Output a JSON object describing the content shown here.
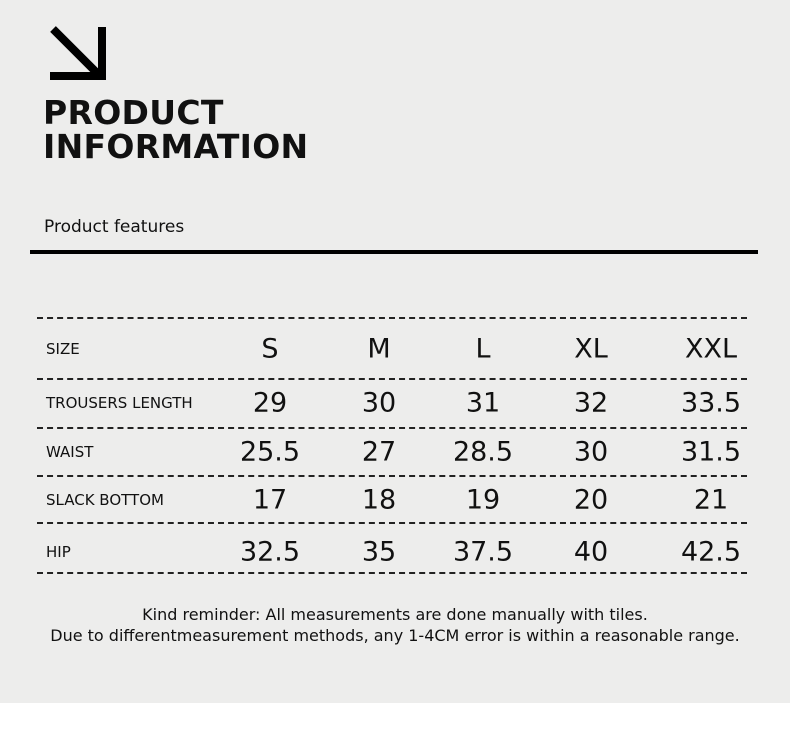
{
  "header": {
    "title_line1": "PRODUCT",
    "title_line2": "INFORMATION",
    "subtitle": "Product features",
    "icon": "arrow-down-right-icon"
  },
  "table": {
    "columns": [
      "SIZE",
      "S",
      "M",
      "L",
      "XL",
      "XXL"
    ],
    "rows": [
      {
        "label": "TROUSERS LENGTH",
        "values": [
          "29",
          "30",
          "31",
          "32",
          "33.5"
        ]
      },
      {
        "label": "WAIST",
        "values": [
          "25.5",
          "27",
          "28.5",
          "30",
          "31.5"
        ]
      },
      {
        "label": "SLACK BOTTOM",
        "values": [
          "17",
          "18",
          "19",
          "20",
          "21"
        ]
      },
      {
        "label": "HIP",
        "values": [
          "32.5",
          "35",
          "37.5",
          "40",
          "42.5"
        ]
      }
    ]
  },
  "note": {
    "line1": "Kind reminder: All measurements are done manually with tiles.",
    "line2": "Due to differentmeasurement methods, any 1-4CM error is within a reasonable range."
  }
}
